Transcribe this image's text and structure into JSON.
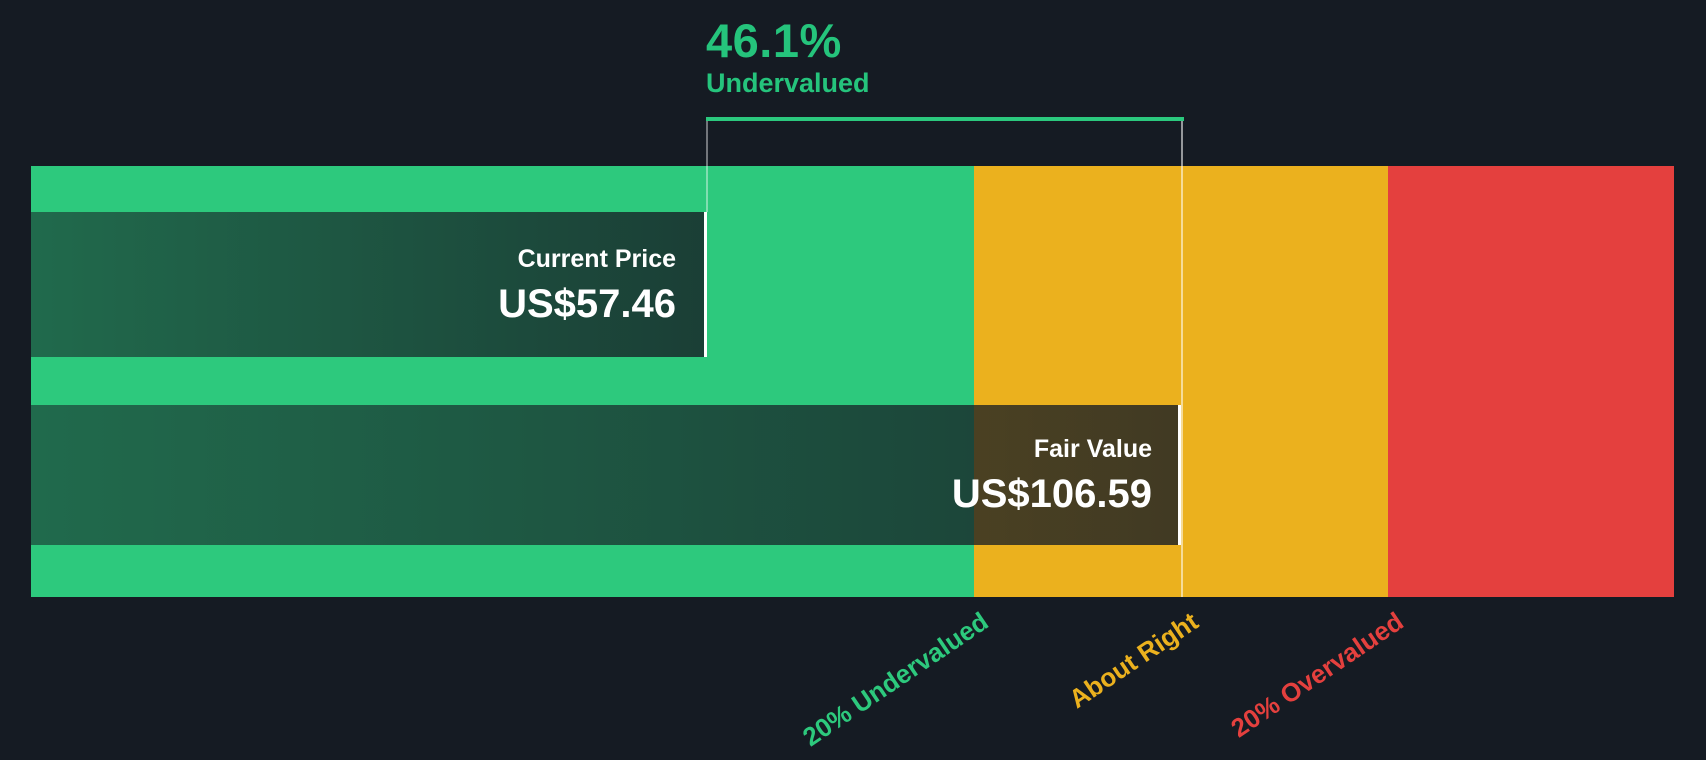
{
  "header": {
    "percent": "46.1%",
    "status": "Undervalued"
  },
  "current_price": {
    "label": "Current Price",
    "value": "US$57.46"
  },
  "fair_value": {
    "label": "Fair Value",
    "value": "US$106.59"
  },
  "axis": {
    "undervalued_label": "20% Undervalued",
    "about_right_label": "About Right",
    "overvalued_label": "20% Overvalued"
  },
  "colors": {
    "background": "#151B23",
    "zone_undervalued_green": "#2DC97D",
    "zone_about_right_amber": "#EBB11E",
    "zone_overvalued_red": "#E4403E",
    "accent_text_green": "#25C47C",
    "bracket_green": "#2BC97E",
    "box_text_white": "#FFFFFF"
  },
  "chart_data": {
    "type": "bar",
    "title": "Current share price vs fair value gauge",
    "series": [
      {
        "name": "Current Price",
        "value_usd": 57.46,
        "label": "US$57.46"
      },
      {
        "name": "Fair Value",
        "value_usd": 106.59,
        "label": "US$106.59"
      }
    ],
    "discount_percent": 46.1,
    "valuation_status": "Undervalued",
    "x_axis_usd_range": [
      0,
      155
    ],
    "zones": [
      {
        "label": "20% Undervalued",
        "color": "#2DC97D",
        "usd_range": [
          0,
          85.27
        ]
      },
      {
        "label": "About Right",
        "color": "#EBB11E",
        "usd_range": [
          85.27,
          127.91
        ]
      },
      {
        "label": "20% Overvalued",
        "color": "#E4403E",
        "usd_range": [
          127.91,
          155
        ]
      }
    ],
    "annotations": [
      {
        "text": "46.1% Undervalued",
        "anchored_between": [
          "Current Price",
          "Fair Value"
        ]
      }
    ],
    "legend_position": "none",
    "grid": false
  }
}
